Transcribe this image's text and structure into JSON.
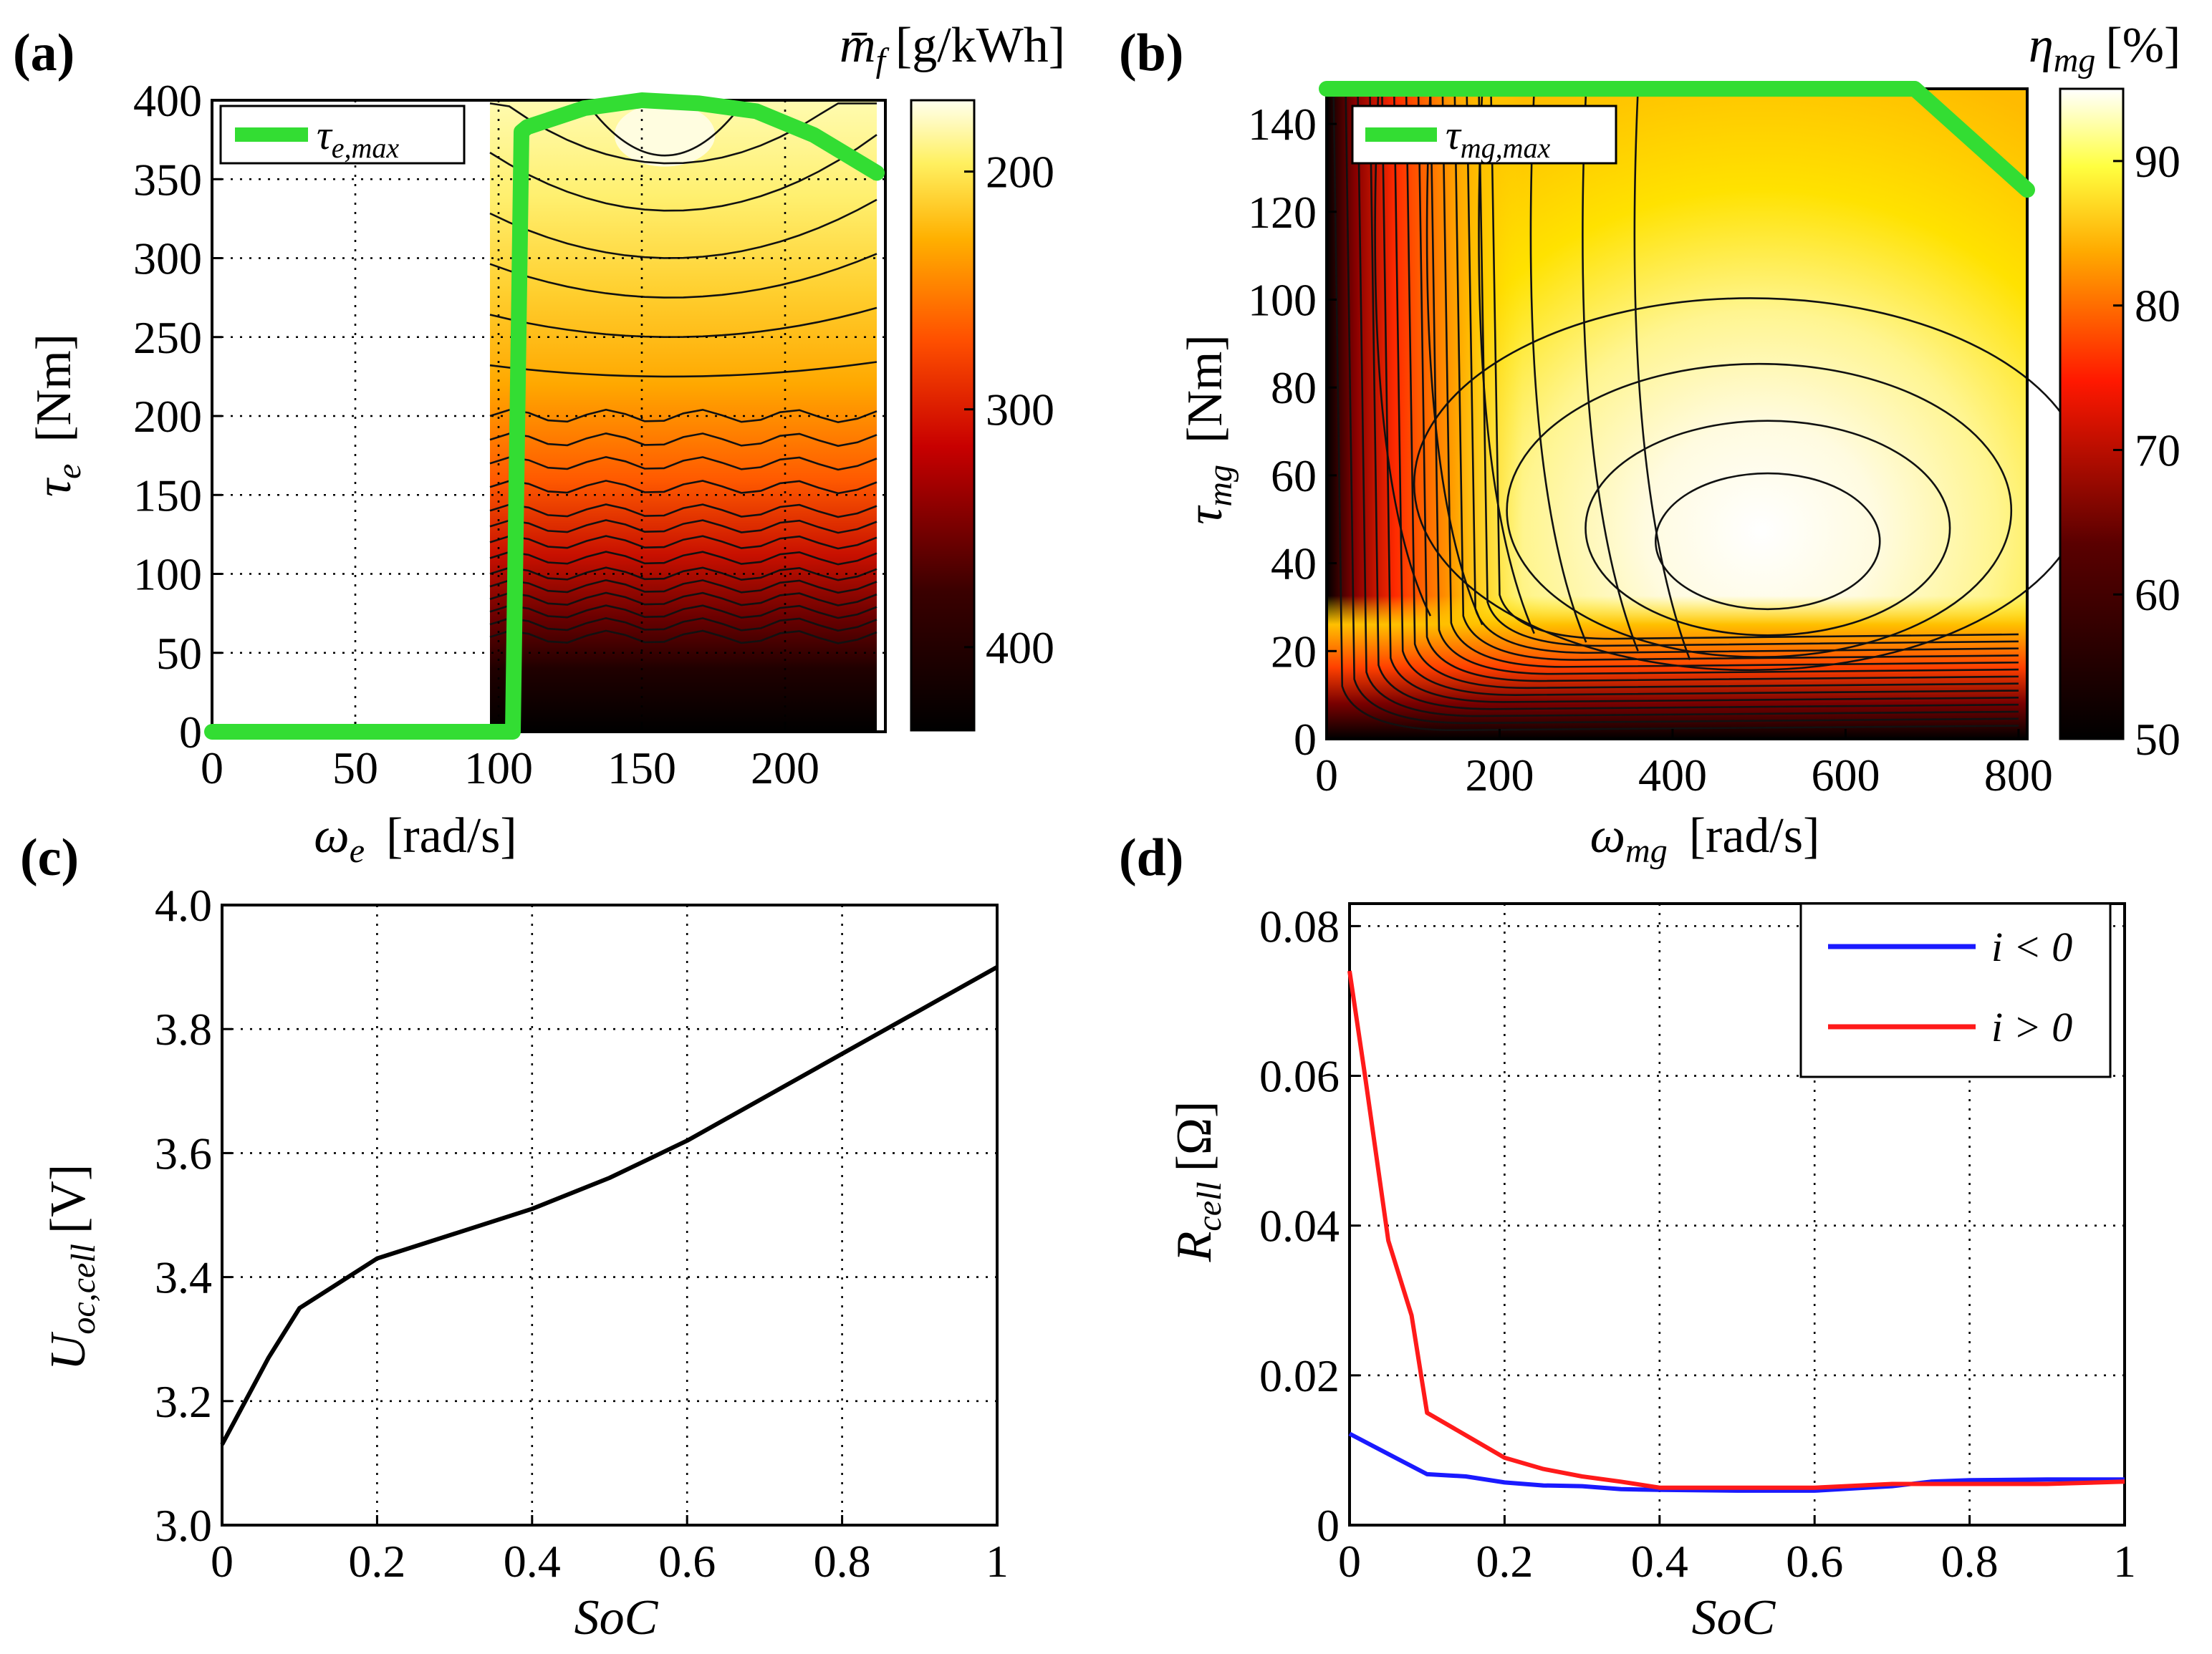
{
  "chart_data": [
    {
      "id": "a",
      "panel_label": "(a)",
      "type": "heatmap",
      "x": {
        "min": 0,
        "max": 235,
        "ticks": [
          0,
          50,
          100,
          150,
          200
        ],
        "label": "ω_e [rad/s]",
        "symbol": "ω",
        "sub": "e",
        "unit": "[rad/s]"
      },
      "y": {
        "min": 0,
        "max": 400,
        "ticks": [
          0,
          50,
          100,
          150,
          200,
          250,
          300,
          350,
          400
        ],
        "label": "τ_e [Nm]",
        "symbol": "τ",
        "sub": "e",
        "unit": "[Nm]"
      },
      "map": {
        "x_range": [
          97,
          232
        ],
        "y_range": [
          0,
          400
        ],
        "quantity": "specific fuel consumption",
        "colormap": "hot"
      },
      "colorbar": {
        "label": "m̄_f [g/kWh]",
        "symbol": "m̄",
        "sub": "f",
        "unit": "[g/kWh]",
        "min": 170,
        "max": 435,
        "ticks": [
          200,
          300,
          400
        ],
        "reversed": true
      },
      "line": {
        "name": "τ_e,max",
        "legend_symbol": "τ",
        "legend_sub": "e,max",
        "color": "#33dd33",
        "x": [
          0,
          105,
          108,
          110,
          130,
          150,
          170,
          190,
          210,
          232
        ],
        "y": [
          0,
          0,
          380,
          383,
          395,
          400,
          398,
          393,
          378,
          354
        ]
      },
      "legend": {
        "location": "top-left"
      },
      "grid": true
    },
    {
      "id": "b",
      "panel_label": "(b)",
      "type": "heatmap",
      "x": {
        "min": 0,
        "max": 810,
        "ticks": [
          0,
          200,
          400,
          600,
          800
        ],
        "label": "ω_mg [rad/s]",
        "symbol": "ω",
        "sub": "mg",
        "unit": "[rad/s]"
      },
      "y": {
        "min": 0,
        "max": 148,
        "ticks": [
          0,
          20,
          40,
          60,
          80,
          100,
          120,
          140
        ],
        "label": "τ_mg [Nm]",
        "symbol": "τ",
        "sub": "mg",
        "unit": "[Nm]"
      },
      "map": {
        "quantity": "motor efficiency",
        "colormap": "hot"
      },
      "colorbar": {
        "label": "η_mg [%]",
        "symbol": "η",
        "sub": "mg",
        "unit": "[%]",
        "min": 50,
        "max": 95,
        "ticks": [
          50,
          60,
          70,
          80,
          90
        ],
        "reversed": false
      },
      "line": {
        "name": "τ_mg,max",
        "legend_symbol": "τ",
        "legend_sub": "mg,max",
        "color": "#33dd33",
        "x": [
          0,
          680,
          810
        ],
        "y": [
          148,
          148,
          125
        ]
      },
      "legend": {
        "location": "top-left"
      },
      "grid": false
    },
    {
      "id": "c",
      "panel_label": "(c)",
      "type": "line",
      "x": {
        "min": 0,
        "max": 1,
        "ticks": [
          0,
          0.2,
          0.4,
          0.6,
          0.8,
          1
        ],
        "tick_labels": [
          "0",
          "0.2",
          "0.4",
          "0.6",
          "0.8",
          "1"
        ],
        "label": "SoC"
      },
      "y": {
        "min": 3.0,
        "max": 4.0,
        "ticks": [
          3.0,
          3.2,
          3.4,
          3.6,
          3.8,
          4.0
        ],
        "tick_labels": [
          "3.0",
          "3.2",
          "3.4",
          "3.6",
          "3.8",
          "4.0"
        ],
        "label": "U_oc,cell [V]",
        "symbol": "U",
        "sub": "oc,cell",
        "unit": "[V]"
      },
      "series": [
        {
          "name": "U_oc,cell",
          "color": "#000000",
          "x": [
            0,
            0.03,
            0.06,
            0.1,
            0.15,
            0.2,
            0.3,
            0.4,
            0.5,
            0.6,
            0.7,
            0.8,
            0.9,
            1.0
          ],
          "y": [
            3.13,
            3.2,
            3.27,
            3.35,
            3.39,
            3.43,
            3.47,
            3.51,
            3.56,
            3.62,
            3.69,
            3.76,
            3.83,
            3.9
          ]
        }
      ],
      "grid": true
    },
    {
      "id": "d",
      "panel_label": "(d)",
      "type": "line",
      "x": {
        "min": 0,
        "max": 1,
        "ticks": [
          0,
          0.2,
          0.4,
          0.6,
          0.8,
          1
        ],
        "tick_labels": [
          "0",
          "0.2",
          "0.4",
          "0.6",
          "0.8",
          "1"
        ],
        "label": "SoC"
      },
      "y": {
        "min": 0,
        "max": 0.083,
        "ticks": [
          0,
          0.02,
          0.04,
          0.06,
          0.08
        ],
        "tick_labels": [
          "0",
          "0.02",
          "0.04",
          "0.06",
          "0.08"
        ],
        "label": "R_cell [Ω]",
        "symbol": "R",
        "sub": "cell",
        "unit": "[Ω]"
      },
      "series": [
        {
          "name": "i < 0",
          "color": "#1a1aff",
          "x": [
            0,
            0.05,
            0.1,
            0.15,
            0.2,
            0.25,
            0.3,
            0.35,
            0.4,
            0.5,
            0.6,
            0.7,
            0.75,
            0.8,
            0.9,
            1.0
          ],
          "y": [
            0.0122,
            0.0095,
            0.0068,
            0.0065,
            0.0057,
            0.0053,
            0.0052,
            0.0048,
            0.0047,
            0.0046,
            0.0046,
            0.0052,
            0.0058,
            0.006,
            0.0061,
            0.0061
          ]
        },
        {
          "name": "i > 0",
          "color": "#ff1a1a",
          "x": [
            0,
            0.02,
            0.05,
            0.08,
            0.1,
            0.15,
            0.2,
            0.25,
            0.3,
            0.35,
            0.4,
            0.5,
            0.6,
            0.7,
            0.8,
            0.9,
            1.0
          ],
          "y": [
            0.074,
            0.06,
            0.038,
            0.028,
            0.015,
            0.012,
            0.009,
            0.0075,
            0.0065,
            0.0058,
            0.005,
            0.005,
            0.005,
            0.0055,
            0.0055,
            0.0055,
            0.0058
          ]
        }
      ],
      "legend": {
        "location": "top-right"
      },
      "grid": true
    }
  ]
}
